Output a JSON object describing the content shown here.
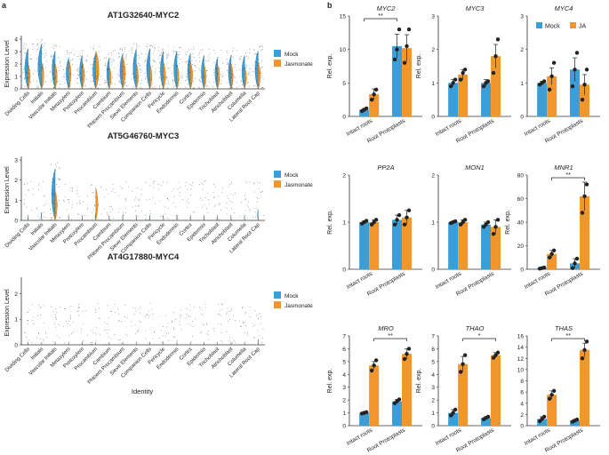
{
  "panel_labels": {
    "a": "a",
    "b": "b"
  },
  "legend_a": {
    "mock": "Mock",
    "ja": "Jasmonate"
  },
  "legend_b": {
    "mock": "Mock",
    "ja": "JA"
  },
  "colors": {
    "mock": "#3a9fd9",
    "ja": "#f0962c",
    "axis": "#333333"
  },
  "violin_identity_label": "Identity",
  "violin_cell_types": [
    "Dividing Cells",
    "Initials",
    "Vascular Initials",
    "Metaxylem",
    "Protoxylem",
    "Procambium",
    "Cambium",
    "Phloem Procambium",
    "Sieve Elements",
    "Companion Cells",
    "Pericycle",
    "Endodermis",
    "Cortex",
    "Epidermis",
    "Trichoblast",
    "Atrichoblast",
    "Columella",
    "Lateral Root Cap"
  ],
  "chart_data": [
    {
      "type": "violin",
      "panel": "a",
      "title": "AT1G32640-MYC2",
      "ylabel": "Expression Level",
      "ylim": [
        0,
        4
      ],
      "yticks": [
        0,
        1,
        2,
        3,
        4
      ],
      "mock_level": [
        0.9,
        1.0,
        0.85,
        0.7,
        0.75,
        0.8,
        0.7,
        0.8,
        0.9,
        0.9,
        0.85,
        0.85,
        0.8,
        0.75,
        0.7,
        0.75,
        0.75,
        0.85
      ],
      "ja_level": [
        0.55,
        0.6,
        0.55,
        0.65,
        0.6,
        0.85,
        0.5,
        0.7,
        0.55,
        0.55,
        0.6,
        0.55,
        0.6,
        0.55,
        0.55,
        0.55,
        0.5,
        0.6
      ]
    },
    {
      "type": "violin",
      "panel": "a",
      "title": "AT5G46760-MYC3",
      "ylabel": "Expression Level",
      "ylim": [
        0,
        3
      ],
      "yticks": [
        0,
        1,
        2,
        3
      ],
      "mock_level": [
        0.1,
        0.15,
        0.95,
        0.1,
        0.1,
        0.15,
        0.1,
        0.1,
        0.1,
        0.1,
        0.1,
        0.1,
        0.1,
        0.1,
        0.1,
        0.1,
        0.1,
        0.2
      ],
      "ja_level": [
        0.05,
        0.05,
        0.55,
        0.05,
        0.05,
        0.6,
        0.05,
        0.05,
        0.05,
        0.05,
        0.05,
        0.05,
        0.05,
        0.05,
        0.05,
        0.05,
        0.05,
        0.05
      ]
    },
    {
      "type": "violin",
      "panel": "a",
      "title": "AT4G17880-MYC4",
      "ylabel": "Expression Level",
      "ylim": [
        0,
        2.5
      ],
      "yticks": [
        0,
        1,
        2
      ],
      "mock_level": [
        0.05,
        0.05,
        0.05,
        0.05,
        0.05,
        0.05,
        0.05,
        0.05,
        0.05,
        0.05,
        0.05,
        0.05,
        0.05,
        0.05,
        0.05,
        0.05,
        0.05,
        0.1
      ],
      "ja_level": [
        0.03,
        0.03,
        0.03,
        0.03,
        0.03,
        0.03,
        0.03,
        0.03,
        0.03,
        0.03,
        0.03,
        0.03,
        0.03,
        0.03,
        0.03,
        0.03,
        0.03,
        0.05
      ]
    },
    {
      "type": "bar",
      "panel": "b",
      "title": "MYC2",
      "ylabel": "Rel. exp.",
      "categories": [
        "Intact roots",
        "Root Protoplasts"
      ],
      "ylim": [
        0,
        15
      ],
      "yticks": [
        0,
        5,
        10,
        15
      ],
      "mock": [
        1.0,
        10.5
      ],
      "ja": [
        3.3,
        10.2
      ],
      "mock_err": [
        0.2,
        1.8
      ],
      "ja_err": [
        0.8,
        2.0
      ],
      "mock_points": [
        [
          0.8,
          1.0,
          1.2
        ],
        [
          8.5,
          10.0,
          13.0
        ]
      ],
      "ja_points": [
        [
          2.5,
          3.3,
          4.0
        ],
        [
          8.0,
          10.5,
          13.0
        ]
      ],
      "sig": "**",
      "sig_between": "mock"
    },
    {
      "type": "bar",
      "panel": "b",
      "title": "MYC3",
      "ylabel": "Rel. exp.",
      "categories": [
        "Intact roots",
        "Root Protoplasts"
      ],
      "ylim": [
        0,
        3
      ],
      "yticks": [
        0,
        1,
        2,
        3
      ],
      "mock": [
        1.0,
        1.0
      ],
      "ja": [
        1.25,
        1.8
      ],
      "mock_err": [
        0.1,
        0.1
      ],
      "ja_err": [
        0.15,
        0.35
      ],
      "mock_points": [
        [
          0.9,
          1.0,
          1.1
        ],
        [
          0.9,
          1.0,
          1.05
        ]
      ],
      "ja_points": [
        [
          1.1,
          1.3,
          1.4
        ],
        [
          1.3,
          1.8,
          2.3
        ]
      ],
      "sig": "",
      "sig_between": ""
    },
    {
      "type": "bar",
      "panel": "b",
      "title": "MYC4",
      "ylabel": "",
      "categories": [
        "Intact roots",
        "Root Protoplasts"
      ],
      "ylim": [
        0,
        3
      ],
      "yticks": [
        0,
        1,
        2,
        3
      ],
      "mock": [
        1.0,
        1.4
      ],
      "ja": [
        1.2,
        0.95
      ],
      "mock_err": [
        0.05,
        0.35
      ],
      "ja_err": [
        0.25,
        0.3
      ],
      "mock_points": [
        [
          0.95,
          1.0,
          1.05
        ],
        [
          0.9,
          1.4,
          1.9
        ]
      ],
      "ja_points": [
        [
          0.8,
          1.2,
          1.6
        ],
        [
          0.5,
          0.95,
          1.4
        ]
      ],
      "sig": "",
      "sig_between": ""
    },
    {
      "type": "bar",
      "panel": "b",
      "title": "PP2A",
      "ylabel": "Rel. exp.",
      "categories": [
        "Intact roots",
        "Root Protoplasts"
      ],
      "ylim": [
        0,
        2
      ],
      "yticks": [
        0,
        1,
        2
      ],
      "mock": [
        1.0,
        1.05
      ],
      "ja": [
        1.0,
        1.1
      ],
      "mock_err": [
        0.03,
        0.1
      ],
      "ja_err": [
        0.05,
        0.15
      ],
      "mock_points": [
        [
          0.97,
          1.0,
          1.03
        ],
        [
          0.95,
          1.05,
          1.15
        ]
      ],
      "ja_points": [
        [
          0.95,
          1.0,
          1.05
        ],
        [
          0.95,
          1.1,
          1.25
        ]
      ],
      "sig": "",
      "sig_between": ""
    },
    {
      "type": "bar",
      "panel": "b",
      "title": "MON1",
      "ylabel": "",
      "categories": [
        "Intact roots",
        "Root Protoplasts"
      ],
      "ylim": [
        0,
        2
      ],
      "yticks": [
        0,
        1,
        2
      ],
      "mock": [
        1.0,
        0.95
      ],
      "ja": [
        1.0,
        0.9
      ],
      "mock_err": [
        0.02,
        0.05
      ],
      "ja_err": [
        0.05,
        0.15
      ],
      "mock_points": [
        [
          0.98,
          1.0,
          1.02
        ],
        [
          0.9,
          0.95,
          1.0
        ]
      ],
      "ja_points": [
        [
          0.95,
          1.0,
          1.05
        ],
        [
          0.75,
          0.9,
          1.05
        ]
      ],
      "sig": "",
      "sig_between": ""
    },
    {
      "type": "bar",
      "panel": "b",
      "title": "MNR1",
      "ylabel": "Rel. exp.",
      "categories": [
        "Intact roots",
        "Root Protoplasts"
      ],
      "ylim": [
        0,
        80
      ],
      "yticks": [
        0,
        20,
        40,
        60,
        80
      ],
      "mock": [
        1.0,
        5.0
      ],
      "ja": [
        13.0,
        62.0
      ],
      "mock_err": [
        0.5,
        4.0
      ],
      "ja_err": [
        3.0,
        12.0
      ],
      "mock_points": [
        [
          0.5,
          1.0,
          1.5
        ],
        [
          1.0,
          5.0,
          9.0
        ]
      ],
      "ja_points": [
        [
          10.0,
          13.0,
          16.0
        ],
        [
          48.0,
          62.0,
          72.0
        ]
      ],
      "sig": "**",
      "sig_between": "ja"
    },
    {
      "type": "bar",
      "panel": "b",
      "title": "MRO",
      "ylabel": "Rel. exp.",
      "categories": [
        "Intact roots",
        "Root Protoplasts"
      ],
      "ylim": [
        0,
        7
      ],
      "yticks": [
        0,
        1,
        2,
        3,
        4,
        5,
        6,
        7
      ],
      "mock": [
        1.0,
        1.9
      ],
      "ja": [
        4.7,
        5.6
      ],
      "mock_err": [
        0.05,
        0.15
      ],
      "ja_err": [
        0.3,
        0.4
      ],
      "mock_points": [
        [
          0.95,
          1.0,
          1.05
        ],
        [
          1.75,
          1.9,
          2.05
        ]
      ],
      "ja_points": [
        [
          4.3,
          4.7,
          5.1
        ],
        [
          5.2,
          5.6,
          6.0
        ]
      ],
      "sig": "**",
      "sig_between": "ja"
    },
    {
      "type": "bar",
      "panel": "b",
      "title": "THAO",
      "ylabel": "Rel. exp.",
      "categories": [
        "Intact roots",
        "Root Protoplasts"
      ],
      "ylim": [
        0,
        7
      ],
      "yticks": [
        0,
        1,
        2,
        3,
        4,
        5,
        6,
        7
      ],
      "mock": [
        1.0,
        0.6
      ],
      "ja": [
        4.8,
        5.5
      ],
      "mock_err": [
        0.25,
        0.1
      ],
      "ja_err": [
        0.6,
        0.2
      ],
      "mock_points": [
        [
          0.8,
          1.0,
          1.25
        ],
        [
          0.5,
          0.6,
          0.7
        ]
      ],
      "ja_points": [
        [
          4.2,
          4.8,
          5.5
        ],
        [
          5.3,
          5.5,
          5.7
        ]
      ],
      "sig": "*",
      "sig_between": "ja"
    },
    {
      "type": "bar",
      "panel": "b",
      "title": "THAS",
      "ylabel": "",
      "categories": [
        "Intact roots",
        "Root Protoplasts"
      ],
      "ylim": [
        0,
        16
      ],
      "yticks": [
        0,
        2,
        4,
        6,
        8,
        10,
        12,
        14,
        16
      ],
      "mock": [
        1.2,
        0.9
      ],
      "ja": [
        5.5,
        13.5
      ],
      "mock_err": [
        0.4,
        0.2
      ],
      "ja_err": [
        0.7,
        1.2
      ],
      "mock_points": [
        [
          0.8,
          1.2,
          1.6
        ],
        [
          0.7,
          0.9,
          1.1
        ]
      ],
      "ja_points": [
        [
          4.8,
          5.5,
          6.2
        ],
        [
          12.0,
          13.5,
          15.0
        ]
      ],
      "sig": "**",
      "sig_between": "ja"
    }
  ]
}
